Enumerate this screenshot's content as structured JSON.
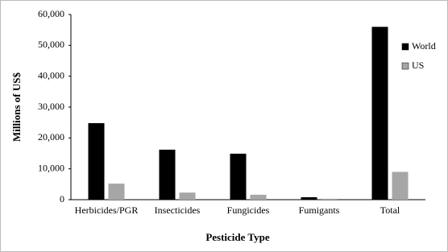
{
  "chart_data": {
    "type": "bar",
    "x_label": "Pesticide Type",
    "y_label": "Millions of US$",
    "categories": [
      "Herbicides/PGR",
      "Insecticides",
      "Fungicides",
      "Fumigants",
      "Total"
    ],
    "series": [
      {
        "name": "World",
        "color": "#000000",
        "values": [
          24800,
          16200,
          14900,
          800,
          56000
        ]
      },
      {
        "name": "US",
        "color": "#a6a6a6",
        "values": [
          5200,
          2300,
          1600,
          300,
          9000
        ]
      }
    ],
    "ylim": [
      0,
      60000
    ],
    "yticks": [
      0,
      {
        "value": 10000,
        "label": "10,000"
      },
      {
        "value": 20000,
        "label": "20,000"
      },
      {
        "value": 30000,
        "label": "30,000"
      },
      {
        "value": 40000,
        "label": "40,000"
      },
      {
        "value": 50000,
        "label": "50,000"
      },
      {
        "value": 60000,
        "label": "60,000"
      }
    ],
    "legend": "right"
  }
}
